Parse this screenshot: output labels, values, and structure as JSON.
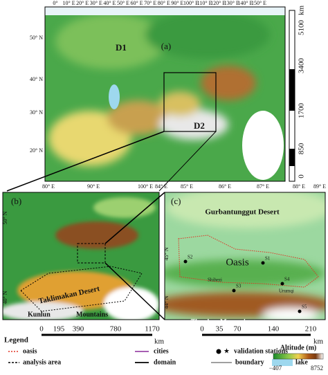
{
  "panel_a": {
    "label": "(a)",
    "domain_labels": [
      "D1",
      "D2"
    ],
    "lon_labels": [
      "0°",
      "10° E",
      "20° E",
      "30° E",
      "40° E",
      "50° E",
      "60° E",
      "70° E",
      "80° E",
      "90° E",
      "100° E",
      "110° E",
      "120° E",
      "130° E",
      "140° E",
      "150° E"
    ],
    "lat_labels": [
      "50° N",
      "40° N",
      "30° N",
      "20° N"
    ],
    "scale_labels": [
      "0",
      "850",
      "1700",
      "3400",
      "5100"
    ],
    "scale_unit": "km"
  },
  "panel_b": {
    "label": "(b)",
    "lon_labels": [
      "80° E",
      "90° E",
      "100° E"
    ],
    "lat_labels": [
      "50° N",
      "40° N"
    ],
    "place_labels": [
      "Taklimakan Desert",
      "Kunlun",
      "Mountains"
    ],
    "scale_labels": [
      "0",
      "195",
      "390",
      "780",
      "1170"
    ],
    "scale_unit": "km"
  },
  "panel_c": {
    "label": "(c)",
    "lon_labels": [
      "84° E",
      "85° E",
      "86° E",
      "87° E",
      "88° E",
      "89° E"
    ],
    "lat_labels": [
      "45° N",
      "44° N"
    ],
    "place_labels": [
      "Gurbantunggut Desert",
      "Oasis",
      "Shihezi",
      "Urumqi",
      "Tianshan Mountains"
    ],
    "stations": [
      "S1",
      "S2",
      "S3",
      "S4",
      "S5"
    ],
    "scale_labels": [
      "0",
      "35",
      "70",
      "140",
      "210"
    ],
    "scale_unit": "km"
  },
  "legend": {
    "title": "Legend",
    "items": [
      "oasis",
      "cities",
      "validation stations",
      "analysis area",
      "domain",
      "boundary",
      "lake"
    ],
    "colorbar_title": "Altitude (m)",
    "colorbar_min": "−407",
    "colorbar_max": "8752"
  }
}
